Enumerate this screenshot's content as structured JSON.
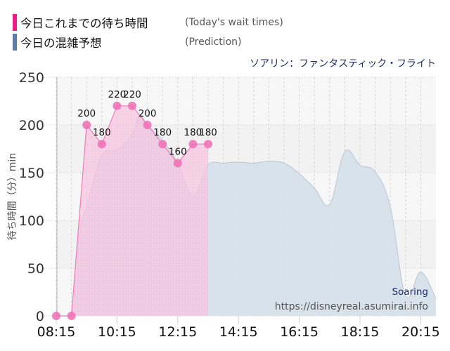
{
  "legend": {
    "items": [
      {
        "label": "今日これまでの待ち時間",
        "sublabel": "(Today's wait times)",
        "color": "#f0198c"
      },
      {
        "label": "今日の混雑予想",
        "sublabel": "(Prediction)",
        "color": "#5b7aa8"
      }
    ]
  },
  "attraction_title": "ソアリン：ファンタスティック・フライト",
  "watermark": {
    "name": "Soaring",
    "url": "https://disneyreal.asumirai.info"
  },
  "colors": {
    "today_marker": "#ee6fb5",
    "today_fill": "#f7bfdd",
    "today_line": "#f27bbd",
    "prediction_fill": "#d6e0ea",
    "prediction_line": "#b9c6d3",
    "background": "#f3f3f3"
  },
  "chart_data": {
    "type": "area",
    "title": "ソアリン：ファンタスティック・フライト",
    "xlabel": "",
    "ylabel": "待ち時間（分）min",
    "ylim": [
      0,
      250
    ],
    "yticks": [
      0,
      50,
      100,
      150,
      200,
      250
    ],
    "xticks": [
      "08:15",
      "10:15",
      "12:15",
      "14:15",
      "16:15",
      "18:15",
      "20:15"
    ],
    "grid": true,
    "legend_position": "top-left",
    "series": [
      {
        "name": "今日これまでの待ち時間 (Today's wait times)",
        "x": [
          "08:15",
          "08:45",
          "09:15",
          "09:45",
          "10:15",
          "10:45",
          "11:15",
          "11:45",
          "12:15",
          "12:45",
          "13:15"
        ],
        "values": [
          0,
          0,
          200,
          180,
          220,
          220,
          200,
          180,
          160,
          180,
          180
        ],
        "labels": [
          "",
          "",
          "200",
          "180",
          "220",
          "220",
          "200",
          "180",
          "160",
          "180",
          "180"
        ]
      },
      {
        "name": "今日の混雑予想 (Prediction)",
        "x": [
          "08:45",
          "09:00",
          "09:15",
          "09:45",
          "10:15",
          "10:45",
          "11:00",
          "11:15",
          "11:45",
          "12:15",
          "12:45",
          "13:15",
          "13:45",
          "14:15",
          "14:45",
          "15:15",
          "15:45",
          "16:15",
          "16:45",
          "17:15",
          "17:45",
          "18:15",
          "18:45",
          "19:15",
          "19:45",
          "20:15",
          "20:45"
        ],
        "values": [
          0,
          84,
          115,
          168,
          174,
          190,
          210,
          200,
          184,
          160,
          126,
          158,
          160,
          161,
          160,
          162,
          160,
          149,
          134,
          117,
          172,
          158,
          151,
          114,
          21,
          46,
          18
        ]
      }
    ]
  }
}
